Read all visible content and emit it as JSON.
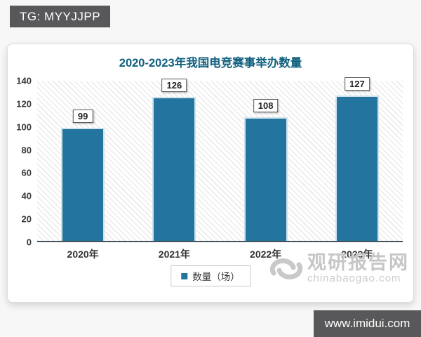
{
  "banners": {
    "top_left": "TG: MYYJJPP",
    "bottom_right": "www.imidui.com"
  },
  "chart_data": {
    "type": "bar",
    "title": "2020-2023年我国电竞赛事举办数量",
    "categories": [
      "2020年",
      "2021年",
      "2022年",
      "2023年"
    ],
    "values": [
      99,
      126,
      108,
      127
    ],
    "series": [
      {
        "name": "数量（场）",
        "values": [
          99,
          126,
          108,
          127
        ]
      }
    ],
    "xlabel": "",
    "ylabel": "",
    "ylim": [
      0,
      140
    ],
    "yticks": [
      0,
      20,
      40,
      60,
      80,
      100,
      120,
      140
    ],
    "grid": false,
    "legend_position": "bottom",
    "plot_background": "diagonal-hatch",
    "bar_color": "#23749e",
    "data_labels": true
  },
  "legend": {
    "label": "数量（场）"
  },
  "watermark": {
    "name": "观研报告网",
    "domain": "chinabaogao.com"
  },
  "colors": {
    "title": "#11607f",
    "bar": "#23749e",
    "banner_bg": "#58585a",
    "banner_text": "#ffffff",
    "axis_line": "#47535c",
    "watermark": "#c6c6c6"
  }
}
